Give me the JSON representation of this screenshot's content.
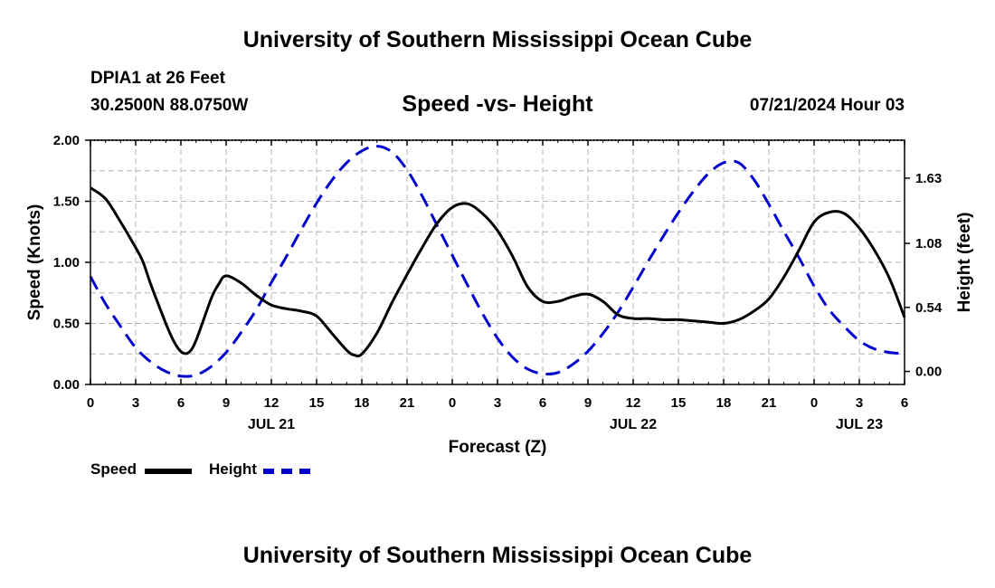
{
  "header": {
    "title": "University of Southern Mississippi Ocean Cube",
    "station": "DPIA1 at 26 Feet",
    "coordinates": "30.2500N  88.0750W",
    "chart_title": "Speed -vs- Height",
    "run_time": "07/21/2024 Hour 03"
  },
  "footer": {
    "title": "University of Southern Mississippi Ocean Cube"
  },
  "colors": {
    "speed": "#000000",
    "height": "#0000cc",
    "grid": "#b4b4b4"
  },
  "chart_data": {
    "type": "line",
    "title": "Speed -vs- Height",
    "xlabel": "Forecast (Z)",
    "ylabel": "Speed (Knots)",
    "y2label": "Height (feet)",
    "x_unit": "hours since 07/21 00Z",
    "xlim": [
      0,
      54
    ],
    "ylim": [
      0,
      2.0
    ],
    "y2lim": [
      -0.11,
      1.95
    ],
    "grid": true,
    "legend_position": "bottom-left",
    "x_ticks": [
      0,
      3,
      6,
      9,
      12,
      15,
      18,
      21,
      24,
      27,
      30,
      33,
      36,
      39,
      42,
      45,
      48,
      51,
      54
    ],
    "x_tick_labels": [
      "0",
      "3",
      "6",
      "9",
      "12",
      "15",
      "18",
      "21",
      "0",
      "3",
      "6",
      "9",
      "12",
      "15",
      "18",
      "21",
      "0",
      "3",
      "6"
    ],
    "date_labels": [
      {
        "x": 12,
        "label": "JUL 21"
      },
      {
        "x": 36,
        "label": "JUL 22"
      },
      {
        "x": 51,
        "label": "JUL 23"
      }
    ],
    "y_ticks": [
      0,
      0.5,
      1.0,
      1.5,
      2.0
    ],
    "y_tick_labels": [
      "0.00",
      "0.50",
      "1.00",
      "1.50",
      "2.00"
    ],
    "y2_ticks": [
      0,
      0.54,
      1.08,
      1.63
    ],
    "y2_tick_labels": [
      "0.00",
      "0.54",
      "1.08",
      "1.63"
    ],
    "series": [
      {
        "name": "Speed",
        "axis": "left",
        "style": "solid",
        "x": [
          0,
          1,
          2,
          3,
          3.5,
          4,
          5,
          5.5,
          6,
          6.5,
          7,
          8,
          8.5,
          9,
          10,
          11,
          12,
          13,
          14,
          15,
          16,
          17,
          17.5,
          18,
          19,
          20,
          21,
          22,
          23,
          24,
          25,
          26,
          27,
          28,
          29,
          30,
          31,
          32,
          33,
          34,
          35,
          36,
          37,
          38,
          39,
          40,
          41,
          42,
          43,
          44,
          45,
          46,
          47,
          48,
          49,
          50,
          51,
          52,
          53,
          54
        ],
        "values": [
          1.61,
          1.52,
          1.33,
          1.12,
          1.0,
          0.82,
          0.5,
          0.36,
          0.27,
          0.26,
          0.36,
          0.7,
          0.82,
          0.89,
          0.83,
          0.73,
          0.65,
          0.62,
          0.6,
          0.56,
          0.42,
          0.28,
          0.24,
          0.25,
          0.42,
          0.67,
          0.9,
          1.12,
          1.32,
          1.45,
          1.48,
          1.4,
          1.26,
          1.05,
          0.8,
          0.68,
          0.68,
          0.72,
          0.74,
          0.68,
          0.57,
          0.54,
          0.54,
          0.53,
          0.53,
          0.52,
          0.51,
          0.5,
          0.53,
          0.6,
          0.7,
          0.88,
          1.1,
          1.33,
          1.41,
          1.4,
          1.28,
          1.1,
          0.87,
          0.55
        ]
      },
      {
        "name": "Height",
        "axis": "right",
        "style": "dashed",
        "x": [
          0,
          1,
          2,
          3,
          4,
          5,
          6,
          7,
          8,
          9,
          10,
          11,
          12,
          13,
          14,
          15,
          16,
          17,
          18,
          19,
          20,
          21,
          22,
          23,
          24,
          25,
          26,
          27,
          28,
          29,
          30,
          31,
          32,
          33,
          34,
          35,
          36,
          37,
          38,
          39,
          40,
          41,
          42,
          43,
          44,
          45,
          46,
          47,
          48,
          49,
          50,
          51,
          52,
          53,
          54
        ],
        "values": [
          0.8,
          0.57,
          0.38,
          0.2,
          0.08,
          0.0,
          -0.04,
          -0.03,
          0.04,
          0.16,
          0.33,
          0.52,
          0.75,
          0.97,
          1.2,
          1.42,
          1.61,
          1.76,
          1.86,
          1.9,
          1.85,
          1.7,
          1.48,
          1.23,
          0.98,
          0.73,
          0.49,
          0.28,
          0.12,
          0.02,
          -0.02,
          -0.01,
          0.06,
          0.17,
          0.32,
          0.5,
          0.71,
          0.93,
          1.14,
          1.34,
          1.52,
          1.67,
          1.76,
          1.76,
          1.62,
          1.41,
          1.18,
          0.96,
          0.72,
          0.52,
          0.38,
          0.26,
          0.19,
          0.16,
          0.15
        ]
      }
    ]
  }
}
